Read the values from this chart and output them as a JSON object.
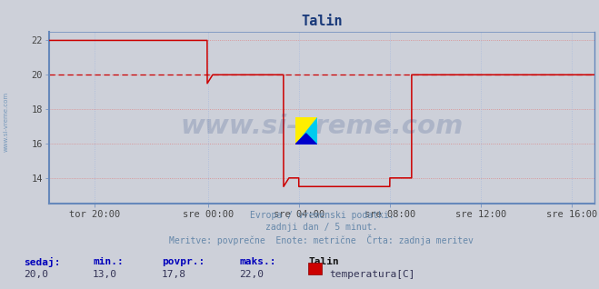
{
  "title": "Talin",
  "bg_color": "#cdd0d9",
  "plot_bg_color": "#cdd0d9",
  "line_color": "#cc0000",
  "axis_color": "#6688bb",
  "grid_color": "#dd8888",
  "grid_color_v": "#aabbdd",
  "dashed_line_value": 20.0,
  "dashed_line_color": "#cc0000",
  "ylim": [
    12.5,
    22.5
  ],
  "yticks": [
    14,
    16,
    18,
    20,
    22
  ],
  "watermark_text": "www.si-vreme.com",
  "watermark_color": "#1a3a7a",
  "watermark_alpha": 0.18,
  "side_text": "www.si-vreme.com",
  "subtitle_lines": [
    "Evropa / vremenski podatki.",
    "zadnji dan / 5 minut.",
    "Meritve: povprečne  Enote: metrične  Črta: zadnja meritev"
  ],
  "legend_header": [
    "sedaj:",
    "min.:",
    "povpr.:",
    "maks.:",
    "Talin"
  ],
  "legend_values": [
    "20,0",
    "13,0",
    "17,8",
    "22,0"
  ],
  "legend_series_label": "temperatura[C]",
  "xtick_labels": [
    "tor 20:00",
    "sre 00:00",
    "sre 04:00",
    "sre 08:00",
    "sre 12:00",
    "sre 16:00"
  ],
  "xtick_positions": [
    0.0833,
    0.2916,
    0.4583,
    0.625,
    0.7916,
    0.9583
  ],
  "x_data": [
    0.0,
    0.01,
    0.02,
    0.03,
    0.04,
    0.05,
    0.06,
    0.07,
    0.083,
    0.095,
    0.11,
    0.125,
    0.14,
    0.155,
    0.165,
    0.18,
    0.195,
    0.21,
    0.22,
    0.235,
    0.25,
    0.26,
    0.27,
    0.28,
    0.2899,
    0.2901,
    0.3,
    0.31,
    0.32,
    0.33,
    0.34,
    0.35,
    0.36,
    0.37,
    0.38,
    0.39,
    0.4,
    0.41,
    0.42,
    0.4299,
    0.4301,
    0.44,
    0.458,
    0.4581,
    0.465,
    0.475,
    0.485,
    0.495,
    0.505,
    0.515,
    0.525,
    0.535,
    0.545,
    0.555,
    0.565,
    0.575,
    0.585,
    0.595,
    0.61,
    0.62,
    0.6249,
    0.6251,
    0.64,
    0.655,
    0.665,
    0.6651,
    0.68,
    0.695,
    0.71,
    0.725,
    0.74,
    0.755,
    0.77,
    0.785,
    0.8,
    0.815,
    0.83,
    0.845,
    0.86,
    0.875,
    0.89,
    0.905,
    0.92,
    0.935,
    0.95,
    0.965,
    0.98,
    1.0
  ],
  "y_data": [
    22.0,
    22.0,
    22.0,
    22.0,
    22.0,
    22.0,
    22.0,
    22.0,
    22.0,
    22.0,
    22.0,
    22.0,
    22.0,
    22.0,
    22.0,
    22.0,
    22.0,
    22.0,
    22.0,
    22.0,
    22.0,
    22.0,
    22.0,
    22.0,
    22.0,
    19.5,
    20.0,
    20.0,
    20.0,
    20.0,
    20.0,
    20.0,
    20.0,
    20.0,
    20.0,
    20.0,
    20.0,
    20.0,
    20.0,
    20.0,
    13.5,
    14.0,
    14.0,
    13.5,
    13.5,
    13.5,
    13.5,
    13.5,
    13.5,
    13.5,
    13.5,
    13.5,
    13.5,
    13.5,
    13.5,
    13.5,
    13.5,
    13.5,
    13.5,
    13.5,
    13.5,
    14.0,
    14.0,
    14.0,
    14.0,
    20.0,
    20.0,
    20.0,
    20.0,
    20.0,
    20.0,
    20.0,
    20.0,
    20.0,
    20.0,
    20.0,
    20.0,
    20.0,
    20.0,
    20.0,
    20.0,
    20.0,
    20.0,
    20.0,
    20.0,
    20.0,
    20.0,
    20.0
  ]
}
